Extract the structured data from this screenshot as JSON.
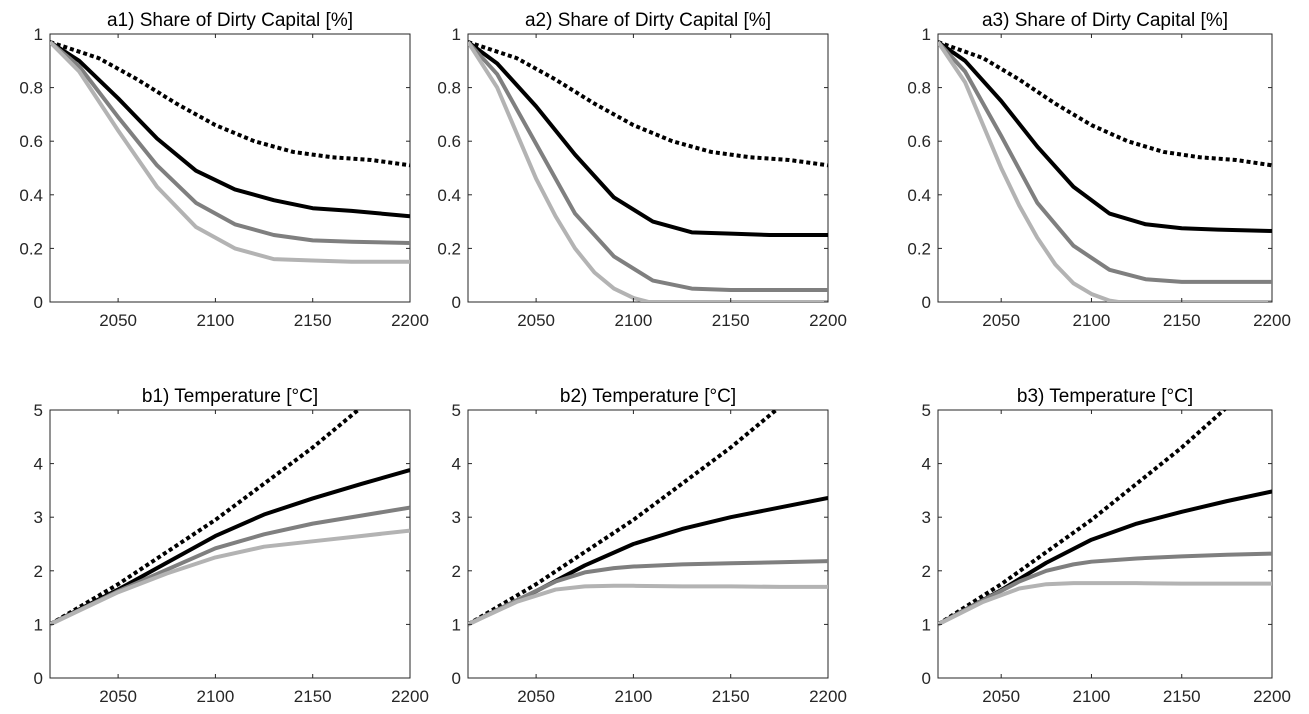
{
  "chart_data": [
    {
      "id": "a1",
      "type": "line",
      "title": "a1) Share of Dirty Capital [%]",
      "xlim": [
        2015,
        2200
      ],
      "ylim": [
        0,
        1
      ],
      "xticks": [
        2050,
        2100,
        2150,
        2200
      ],
      "xtick_labels": [
        "2050",
        "2100",
        "2150",
        "2200"
      ],
      "yticks": [
        0,
        0.2,
        0.4,
        0.6,
        0.8,
        1
      ],
      "ytick_labels": [
        "0",
        "0.2",
        "0.4",
        "0.6",
        "0.8",
        "1"
      ],
      "grid": false,
      "series": [
        {
          "style": "dotted",
          "color": "#000000",
          "x": [
            2015,
            2040,
            2060,
            2080,
            2100,
            2120,
            2140,
            2160,
            2180,
            2200
          ],
          "y": [
            0.97,
            0.91,
            0.83,
            0.74,
            0.66,
            0.6,
            0.56,
            0.54,
            0.53,
            0.51
          ]
        },
        {
          "style": "solid",
          "color": "#000000",
          "x": [
            2015,
            2030,
            2050,
            2070,
            2090,
            2110,
            2130,
            2150,
            2170,
            2200
          ],
          "y": [
            0.97,
            0.9,
            0.76,
            0.61,
            0.49,
            0.42,
            0.38,
            0.35,
            0.34,
            0.32
          ]
        },
        {
          "style": "solid",
          "color": "#7f7f7f",
          "x": [
            2015,
            2030,
            2050,
            2070,
            2090,
            2110,
            2130,
            2150,
            2170,
            2200
          ],
          "y": [
            0.97,
            0.88,
            0.69,
            0.51,
            0.37,
            0.29,
            0.25,
            0.23,
            0.225,
            0.22
          ]
        },
        {
          "style": "solid",
          "color": "#b3b3b3",
          "x": [
            2015,
            2030,
            2050,
            2070,
            2090,
            2110,
            2130,
            2150,
            2170,
            2200
          ],
          "y": [
            0.97,
            0.86,
            0.64,
            0.43,
            0.28,
            0.2,
            0.16,
            0.155,
            0.15,
            0.15
          ]
        }
      ]
    },
    {
      "id": "a2",
      "type": "line",
      "title": "a2) Share of Dirty Capital [%]",
      "xlim": [
        2015,
        2200
      ],
      "ylim": [
        0,
        1
      ],
      "xticks": [
        2050,
        2100,
        2150,
        2200
      ],
      "xtick_labels": [
        "2050",
        "2100",
        "2150",
        "2200"
      ],
      "yticks": [
        0,
        0.2,
        0.4,
        0.6,
        0.8,
        1
      ],
      "ytick_labels": [
        "0",
        "0.2",
        "0.4",
        "0.6",
        "0.8",
        "1"
      ],
      "grid": false,
      "series": [
        {
          "style": "dotted",
          "color": "#000000",
          "x": [
            2015,
            2040,
            2060,
            2080,
            2100,
            2120,
            2140,
            2160,
            2180,
            2200
          ],
          "y": [
            0.97,
            0.91,
            0.83,
            0.74,
            0.66,
            0.6,
            0.56,
            0.54,
            0.53,
            0.51
          ]
        },
        {
          "style": "solid",
          "color": "#000000",
          "x": [
            2015,
            2030,
            2050,
            2070,
            2090,
            2110,
            2130,
            2150,
            2170,
            2200
          ],
          "y": [
            0.97,
            0.89,
            0.73,
            0.55,
            0.39,
            0.3,
            0.26,
            0.255,
            0.25,
            0.25
          ]
        },
        {
          "style": "solid",
          "color": "#7f7f7f",
          "x": [
            2015,
            2030,
            2050,
            2070,
            2090,
            2110,
            2130,
            2150,
            2170,
            2200
          ],
          "y": [
            0.97,
            0.85,
            0.59,
            0.33,
            0.17,
            0.08,
            0.05,
            0.045,
            0.045,
            0.045
          ]
        },
        {
          "style": "solid",
          "color": "#b3b3b3",
          "x": [
            2015,
            2030,
            2050,
            2060,
            2070,
            2080,
            2090,
            2100,
            2108,
            2150,
            2200
          ],
          "y": [
            0.97,
            0.8,
            0.46,
            0.32,
            0.2,
            0.11,
            0.05,
            0.015,
            0,
            0,
            0
          ]
        }
      ]
    },
    {
      "id": "a3",
      "type": "line",
      "title": "a3) Share of Dirty Capital [%]",
      "xlim": [
        2015,
        2200
      ],
      "ylim": [
        0,
        1
      ],
      "xticks": [
        2050,
        2100,
        2150,
        2200
      ],
      "xtick_labels": [
        "2050",
        "2100",
        "2150",
        "2200"
      ],
      "yticks": [
        0,
        0.2,
        0.4,
        0.6,
        0.8,
        1
      ],
      "ytick_labels": [
        "0",
        "0.2",
        "0.4",
        "0.6",
        "0.8",
        "1"
      ],
      "grid": false,
      "series": [
        {
          "style": "dotted",
          "color": "#000000",
          "x": [
            2015,
            2040,
            2060,
            2080,
            2100,
            2120,
            2140,
            2160,
            2180,
            2200
          ],
          "y": [
            0.97,
            0.91,
            0.83,
            0.74,
            0.66,
            0.6,
            0.56,
            0.54,
            0.53,
            0.51
          ]
        },
        {
          "style": "solid",
          "color": "#000000",
          "x": [
            2015,
            2030,
            2050,
            2070,
            2090,
            2110,
            2130,
            2150,
            2170,
            2200
          ],
          "y": [
            0.97,
            0.9,
            0.75,
            0.58,
            0.43,
            0.33,
            0.29,
            0.275,
            0.27,
            0.265
          ]
        },
        {
          "style": "solid",
          "color": "#7f7f7f",
          "x": [
            2015,
            2030,
            2050,
            2070,
            2090,
            2110,
            2130,
            2150,
            2170,
            2200
          ],
          "y": [
            0.97,
            0.86,
            0.62,
            0.37,
            0.21,
            0.12,
            0.085,
            0.075,
            0.075,
            0.075
          ]
        },
        {
          "style": "solid",
          "color": "#b3b3b3",
          "x": [
            2015,
            2030,
            2050,
            2060,
            2070,
            2080,
            2090,
            2100,
            2110,
            2115,
            2150,
            2200
          ],
          "y": [
            0.97,
            0.82,
            0.5,
            0.36,
            0.24,
            0.14,
            0.07,
            0.03,
            0.005,
            0,
            0,
            0
          ]
        }
      ]
    },
    {
      "id": "b1",
      "type": "line",
      "title": "b1) Temperature [°C]",
      "xlim": [
        2015,
        2200
      ],
      "ylim": [
        0,
        5
      ],
      "xticks": [
        2050,
        2100,
        2150,
        2200
      ],
      "xtick_labels": [
        "2050",
        "2100",
        "2150",
        "2200"
      ],
      "yticks": [
        0,
        1,
        2,
        3,
        4,
        5
      ],
      "ytick_labels": [
        "0",
        "1",
        "2",
        "3",
        "4",
        "5"
      ],
      "grid": false,
      "series": [
        {
          "style": "dotted",
          "color": "#000000",
          "x": [
            2015,
            2050,
            2100,
            2150,
            2175
          ],
          "y": [
            1.0,
            1.75,
            2.95,
            4.3,
            5.05
          ]
        },
        {
          "style": "solid",
          "color": "#000000",
          "x": [
            2015,
            2050,
            2075,
            2100,
            2125,
            2150,
            2175,
            2200
          ],
          "y": [
            1.0,
            1.65,
            2.15,
            2.65,
            3.05,
            3.35,
            3.62,
            3.88
          ]
        },
        {
          "style": "solid",
          "color": "#7f7f7f",
          "x": [
            2015,
            2050,
            2075,
            2100,
            2125,
            2150,
            2175,
            2200
          ],
          "y": [
            1.0,
            1.62,
            2.02,
            2.42,
            2.68,
            2.88,
            3.03,
            3.18
          ]
        },
        {
          "style": "solid",
          "color": "#b3b3b3",
          "x": [
            2015,
            2050,
            2075,
            2100,
            2125,
            2150,
            2175,
            2200
          ],
          "y": [
            1.0,
            1.6,
            1.95,
            2.25,
            2.45,
            2.55,
            2.65,
            2.75
          ]
        }
      ]
    },
    {
      "id": "b2",
      "type": "line",
      "title": "b2) Temperature [°C]",
      "xlim": [
        2015,
        2200
      ],
      "ylim": [
        0,
        5
      ],
      "xticks": [
        2050,
        2100,
        2150,
        2200
      ],
      "xtick_labels": [
        "2050",
        "2100",
        "2150",
        "2200"
      ],
      "yticks": [
        0,
        1,
        2,
        3,
        4,
        5
      ],
      "ytick_labels": [
        "0",
        "1",
        "2",
        "3",
        "4",
        "5"
      ],
      "grid": false,
      "series": [
        {
          "style": "dotted",
          "color": "#000000",
          "x": [
            2015,
            2050,
            2100,
            2150,
            2175
          ],
          "y": [
            1.0,
            1.75,
            2.95,
            4.3,
            5.05
          ]
        },
        {
          "style": "solid",
          "color": "#000000",
          "x": [
            2015,
            2050,
            2075,
            2100,
            2125,
            2150,
            2175,
            2200
          ],
          "y": [
            1.0,
            1.62,
            2.1,
            2.5,
            2.78,
            3.0,
            3.18,
            3.36
          ]
        },
        {
          "style": "solid",
          "color": "#7f7f7f",
          "x": [
            2015,
            2040,
            2060,
            2075,
            2090,
            2100,
            2125,
            2150,
            2175,
            2200
          ],
          "y": [
            1.0,
            1.45,
            1.8,
            1.97,
            2.05,
            2.08,
            2.12,
            2.14,
            2.16,
            2.18
          ]
        },
        {
          "style": "solid",
          "color": "#b3b3b3",
          "x": [
            2015,
            2040,
            2060,
            2075,
            2090,
            2100,
            2125,
            2150,
            2175,
            2200
          ],
          "y": [
            1.0,
            1.42,
            1.65,
            1.71,
            1.72,
            1.72,
            1.71,
            1.71,
            1.7,
            1.7
          ]
        }
      ]
    },
    {
      "id": "b3",
      "type": "line",
      "title": "b3) Temperature [°C]",
      "xlim": [
        2015,
        2200
      ],
      "ylim": [
        0,
        5
      ],
      "xticks": [
        2050,
        2100,
        2150,
        2200
      ],
      "xtick_labels": [
        "2050",
        "2100",
        "2150",
        "2200"
      ],
      "yticks": [
        0,
        1,
        2,
        3,
        4,
        5
      ],
      "ytick_labels": [
        "0",
        "1",
        "2",
        "3",
        "4",
        "5"
      ],
      "grid": false,
      "series": [
        {
          "style": "dotted",
          "color": "#000000",
          "x": [
            2015,
            2050,
            2100,
            2150,
            2175
          ],
          "y": [
            1.0,
            1.75,
            2.95,
            4.3,
            5.05
          ]
        },
        {
          "style": "solid",
          "color": "#000000",
          "x": [
            2015,
            2050,
            2075,
            2100,
            2125,
            2150,
            2175,
            2200
          ],
          "y": [
            1.0,
            1.64,
            2.15,
            2.58,
            2.88,
            3.1,
            3.3,
            3.48
          ]
        },
        {
          "style": "solid",
          "color": "#7f7f7f",
          "x": [
            2015,
            2040,
            2060,
            2075,
            2090,
            2100,
            2125,
            2150,
            2175,
            2200
          ],
          "y": [
            1.0,
            1.45,
            1.8,
            2.0,
            2.12,
            2.17,
            2.23,
            2.27,
            2.3,
            2.32
          ]
        },
        {
          "style": "solid",
          "color": "#b3b3b3",
          "x": [
            2015,
            2040,
            2060,
            2075,
            2090,
            2100,
            2125,
            2150,
            2175,
            2200
          ],
          "y": [
            1.0,
            1.42,
            1.67,
            1.75,
            1.77,
            1.77,
            1.77,
            1.76,
            1.76,
            1.76
          ]
        }
      ]
    }
  ]
}
